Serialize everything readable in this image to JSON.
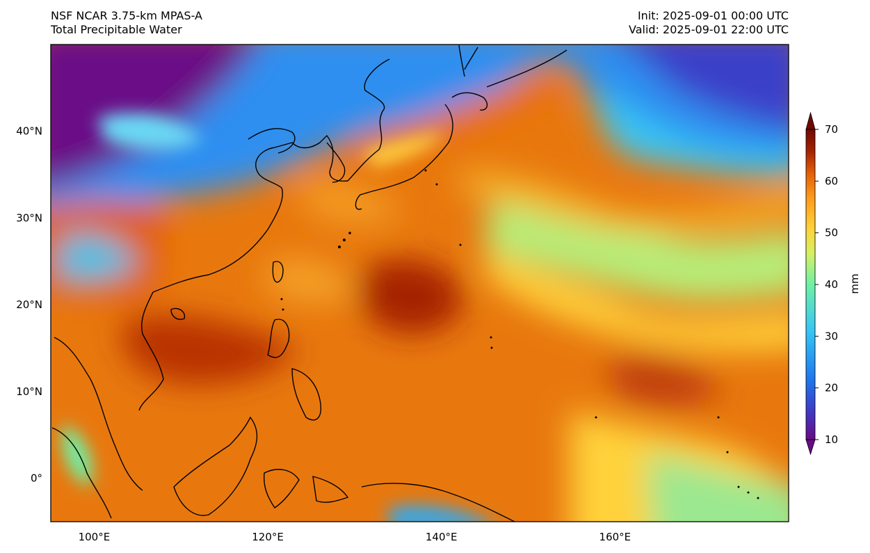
{
  "header": {
    "model": "NSF NCAR 3.75-km MPAS-A",
    "field": "Total Precipitable Water",
    "init": "Init: 2025-09-01 00:00 UTC",
    "valid": "Valid: 2025-09-01 22:00 UTC"
  },
  "map": {
    "lon_range": [
      95,
      180
    ],
    "lat_range": [
      -5,
      50
    ],
    "lon_ticks": [
      {
        "value": 100,
        "label": "100°E"
      },
      {
        "value": 120,
        "label": "120°E"
      },
      {
        "value": 140,
        "label": "140°E"
      },
      {
        "value": 160,
        "label": "160°E"
      }
    ],
    "lat_ticks": [
      {
        "value": 40,
        "label": "40°N"
      },
      {
        "value": 30,
        "label": "30°N"
      },
      {
        "value": 20,
        "label": "20°N"
      },
      {
        "value": 10,
        "label": "10°N"
      },
      {
        "value": 0,
        "label": "0°"
      }
    ]
  },
  "colorbar": {
    "unit": "mm",
    "range": [
      10,
      70
    ],
    "extend": "both",
    "ticks": [
      {
        "value": 70,
        "label": "70"
      },
      {
        "value": 60,
        "label": "60"
      },
      {
        "value": 50,
        "label": "50"
      },
      {
        "value": 40,
        "label": "40"
      },
      {
        "value": 30,
        "label": "30"
      },
      {
        "value": 20,
        "label": "20"
      },
      {
        "value": 10,
        "label": "10"
      }
    ],
    "colors": [
      "#6a0a86",
      "#3b3fc9",
      "#1e7af0",
      "#37c6f5",
      "#6ff0a6",
      "#d6f064",
      "#ffd23a",
      "#ff9a1c",
      "#e25e08",
      "#a52204",
      "#6e0a02"
    ]
  }
}
